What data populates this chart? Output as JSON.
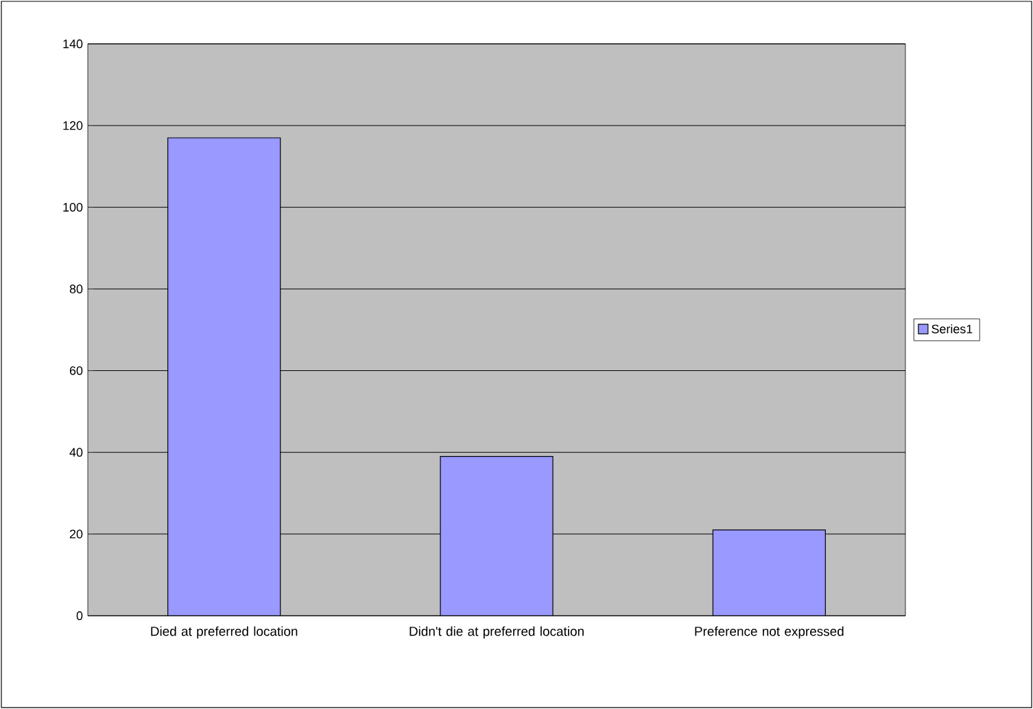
{
  "chart_data": {
    "type": "bar",
    "categories": [
      "Died at preferred location",
      "Didn't die at preferred location",
      "Preference not expressed"
    ],
    "series": [
      {
        "name": "Series1",
        "color": "#9999ff",
        "values": [
          117,
          39,
          21
        ]
      }
    ],
    "ylim": [
      0,
      140
    ],
    "yticks": [
      0,
      20,
      40,
      60,
      80,
      100,
      120,
      140
    ],
    "grid": "y",
    "legend": "right"
  }
}
